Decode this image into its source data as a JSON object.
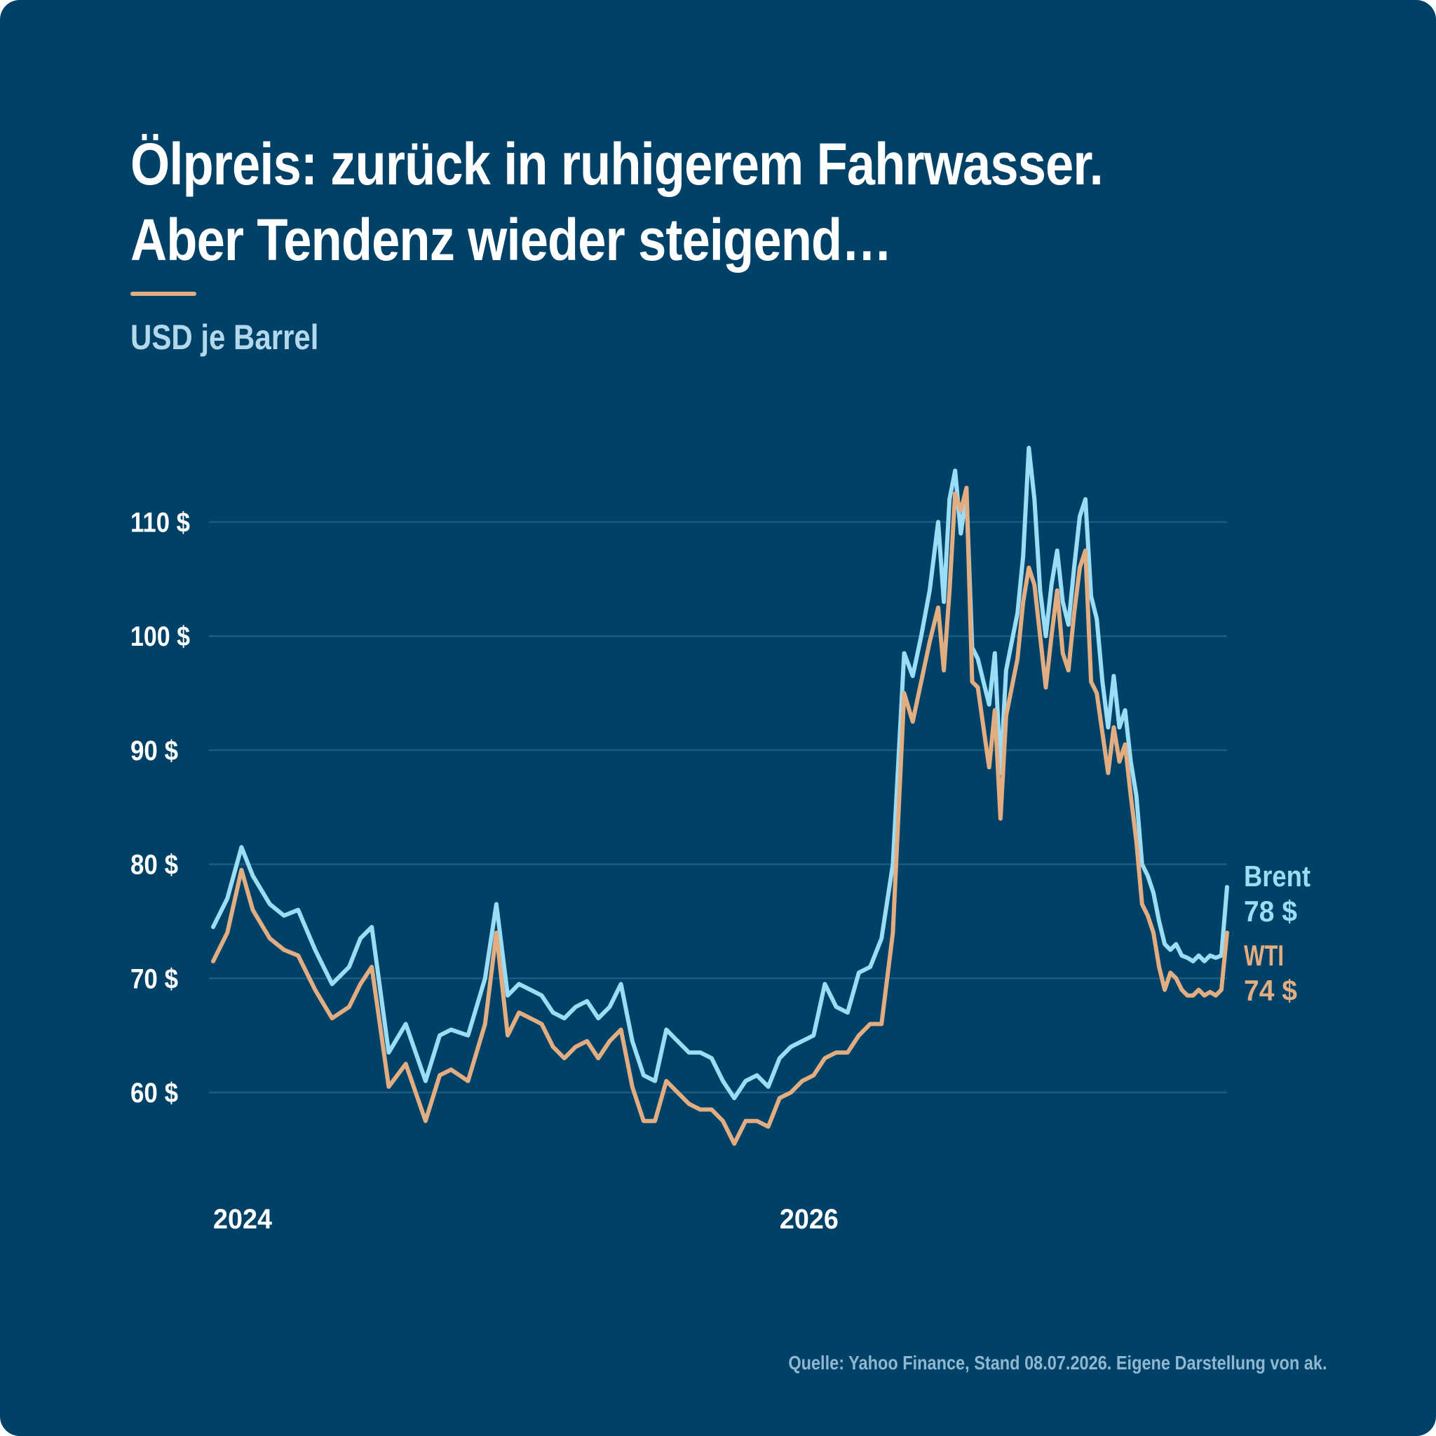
{
  "header": {
    "title_line1": "Ölpreis: zurück in ruhigerem Fahrwasser.",
    "title_line2": "Aber Tendenz wieder steigend…",
    "unit_label": "USD je Barrel"
  },
  "footer": {
    "source": "Quelle: Yahoo Finance, Stand 08.07.2026. Eigene Darstellung von ak."
  },
  "colors": {
    "background": "#004168",
    "gridline": "#1C5A80",
    "brent": "#9CDDF6",
    "wti": "#E3AD82",
    "accent": "#E3AD82"
  },
  "chart_data": {
    "type": "line",
    "xlabel": "",
    "ylabel": "USD je Barrel",
    "ylim": [
      50,
      122
    ],
    "y_ticks": [
      60,
      70,
      80,
      90,
      100,
      110
    ],
    "y_tick_labels": [
      "60 $",
      "70 $",
      "80 $",
      "90 $",
      "100 $",
      "110 $"
    ],
    "x_tick_labels": [
      {
        "label": "2024",
        "x": 0
      },
      {
        "label": "2026",
        "x": 2
      }
    ],
    "x_range": [
      0,
      3.58
    ],
    "grid": true,
    "legend": "direct labels at line ends (right)",
    "x": [
      0.0,
      0.05,
      0.1,
      0.14,
      0.2,
      0.25,
      0.3,
      0.36,
      0.42,
      0.48,
      0.52,
      0.56,
      0.62,
      0.68,
      0.75,
      0.8,
      0.84,
      0.9,
      0.96,
      1.0,
      1.04,
      1.08,
      1.12,
      1.16,
      1.2,
      1.24,
      1.28,
      1.32,
      1.36,
      1.4,
      1.44,
      1.48,
      1.52,
      1.56,
      1.6,
      1.64,
      1.68,
      1.72,
      1.76,
      1.8,
      1.84,
      1.88,
      1.92,
      1.96,
      2.0,
      2.04,
      2.08,
      2.12,
      2.16,
      2.2,
      2.24,
      2.28,
      2.32,
      2.36,
      2.4,
      2.44,
      2.47,
      2.5,
      2.53,
      2.56,
      2.58,
      2.6,
      2.62,
      2.64,
      2.66,
      2.68,
      2.7,
      2.72,
      2.74,
      2.76,
      2.78,
      2.8,
      2.82,
      2.84,
      2.86,
      2.88,
      2.9,
      2.92,
      2.94,
      2.96,
      2.98,
      3.0,
      3.02,
      3.04,
      3.06,
      3.08,
      3.1,
      3.12,
      3.14,
      3.16,
      3.18,
      3.2,
      3.22,
      3.24,
      3.26,
      3.28,
      3.3,
      3.32,
      3.34,
      3.36,
      3.38,
      3.4,
      3.42,
      3.44,
      3.46,
      3.48,
      3.5,
      3.52,
      3.54,
      3.56,
      3.58
    ],
    "series": [
      {
        "name": "Brent",
        "end_label": "78 $",
        "values": [
          74.5,
          77.0,
          81.5,
          79.0,
          76.5,
          75.5,
          76.0,
          72.5,
          69.5,
          71.0,
          73.5,
          74.5,
          63.5,
          66.0,
          61.0,
          65.0,
          65.5,
          65.0,
          70.0,
          76.5,
          68.5,
          69.5,
          69.0,
          68.5,
          67.0,
          66.5,
          67.5,
          68.0,
          66.5,
          67.5,
          69.5,
          64.5,
          61.5,
          61.0,
          65.5,
          64.5,
          63.5,
          63.5,
          63.0,
          61.0,
          59.5,
          61.0,
          61.5,
          60.5,
          63.0,
          64.0,
          64.5,
          65.0,
          69.5,
          67.5,
          67.0,
          70.5,
          71.0,
          73.5,
          80.0,
          98.5,
          96.5,
          100.0,
          104.0,
          110.0,
          103.0,
          112.0,
          114.5,
          109.0,
          112.5,
          99.0,
          98.0,
          96.0,
          94.0,
          98.5,
          88.0,
          97.0,
          99.5,
          102.0,
          107.0,
          116.5,
          112.0,
          104.0,
          100.0,
          104.5,
          107.5,
          103.0,
          101.0,
          106.0,
          110.5,
          112.0,
          103.5,
          101.5,
          96.0,
          92.0,
          96.5,
          92.0,
          93.5,
          89.0,
          86.0,
          80.0,
          79.0,
          77.5,
          75.0,
          73.0,
          72.5,
          73.0,
          72.0,
          71.8,
          71.5,
          72.0,
          71.5,
          72.0,
          71.8,
          72.0,
          78.0
        ]
      },
      {
        "name": "WTI",
        "end_label": "74 $",
        "values": [
          71.5,
          74.0,
          79.5,
          76.0,
          73.5,
          72.5,
          72.0,
          69.0,
          66.5,
          67.5,
          69.5,
          71.0,
          60.5,
          62.5,
          57.5,
          61.5,
          62.0,
          61.0,
          66.0,
          74.0,
          65.0,
          67.0,
          66.5,
          66.0,
          64.0,
          63.0,
          64.0,
          64.5,
          63.0,
          64.5,
          65.5,
          60.5,
          57.5,
          57.5,
          61.0,
          60.0,
          59.0,
          58.5,
          58.5,
          57.5,
          55.5,
          57.5,
          57.5,
          57.0,
          59.5,
          60.0,
          61.0,
          61.5,
          63.0,
          63.5,
          63.5,
          65.0,
          66.0,
          66.0,
          74.0,
          95.0,
          92.5,
          96.0,
          99.5,
          102.5,
          97.0,
          104.0,
          112.5,
          111.0,
          113.0,
          96.0,
          95.5,
          92.0,
          88.5,
          93.5,
          84.0,
          93.0,
          95.5,
          98.0,
          103.0,
          106.0,
          104.5,
          100.0,
          95.5,
          100.0,
          104.0,
          98.5,
          97.0,
          102.0,
          106.0,
          107.5,
          96.0,
          95.0,
          91.5,
          88.0,
          92.0,
          89.0,
          90.5,
          86.0,
          82.0,
          76.5,
          75.5,
          74.0,
          71.0,
          69.0,
          70.5,
          70.0,
          69.0,
          68.5,
          68.5,
          69.0,
          68.5,
          68.8,
          68.5,
          69.0,
          74.0
        ]
      }
    ]
  }
}
